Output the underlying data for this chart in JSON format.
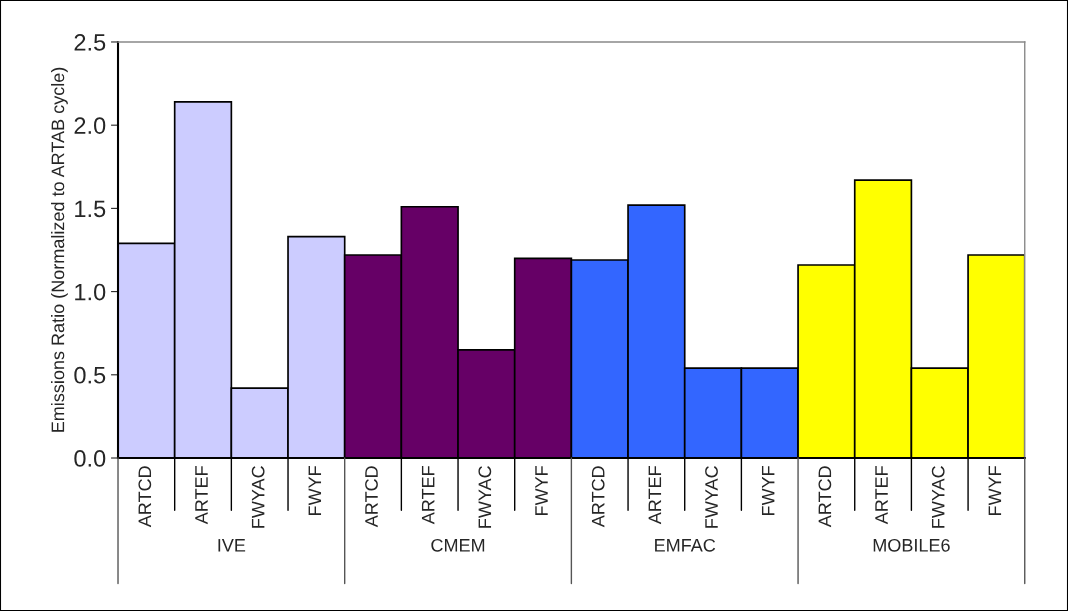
{
  "chart_data": {
    "type": "bar",
    "ylabel": "Emissions Ratio (Normalized to ARTAB cycle)",
    "categories": [
      "ARTCD",
      "ARTEF",
      "FWYAC",
      "FWYF",
      "ARTCD",
      "ARTEF",
      "FWYAC",
      "FWYF",
      "ARTCD",
      "ARTEF",
      "FWYAC",
      "FWYF",
      "ARTCD",
      "ARTEF",
      "FWYAC",
      "FWYF"
    ],
    "series": [
      {
        "color": "#ccccff",
        "values": [
          1.29,
          2.14,
          0.42,
          1.33,
          null,
          null,
          null,
          null,
          null,
          null,
          null,
          null,
          null,
          null,
          null,
          null
        ]
      },
      {
        "color": "#660066",
        "values": [
          null,
          null,
          null,
          null,
          1.22,
          1.51,
          0.65,
          1.2,
          null,
          null,
          null,
          null,
          null,
          null,
          null,
          null
        ]
      },
      {
        "color": "#3366ff",
        "values": [
          null,
          null,
          null,
          null,
          null,
          null,
          null,
          null,
          1.19,
          1.52,
          0.54,
          0.54,
          null,
          null,
          null,
          null
        ]
      },
      {
        "color": "#ffff00",
        "values": [
          null,
          null,
          null,
          null,
          null,
          null,
          null,
          null,
          null,
          null,
          null,
          null,
          1.16,
          1.67,
          0.54,
          1.22
        ]
      }
    ],
    "ylim": [
      0,
      2.5
    ],
    "yticks": [
      {
        "value": 0,
        "label": "0.0"
      },
      {
        "value": 0.5,
        "label": "0.5"
      },
      {
        "value": 1,
        "label": "1.0"
      },
      {
        "value": 1.5,
        "label": "1.5"
      },
      {
        "value": 2,
        "label": "2.0"
      },
      {
        "value": 2.5,
        "label": "2.5"
      }
    ],
    "annotations": [
      "IVE",
      "CMEM",
      "EMFAC",
      "MOBILE6"
    ],
    "grid": false,
    "legend": false
  }
}
